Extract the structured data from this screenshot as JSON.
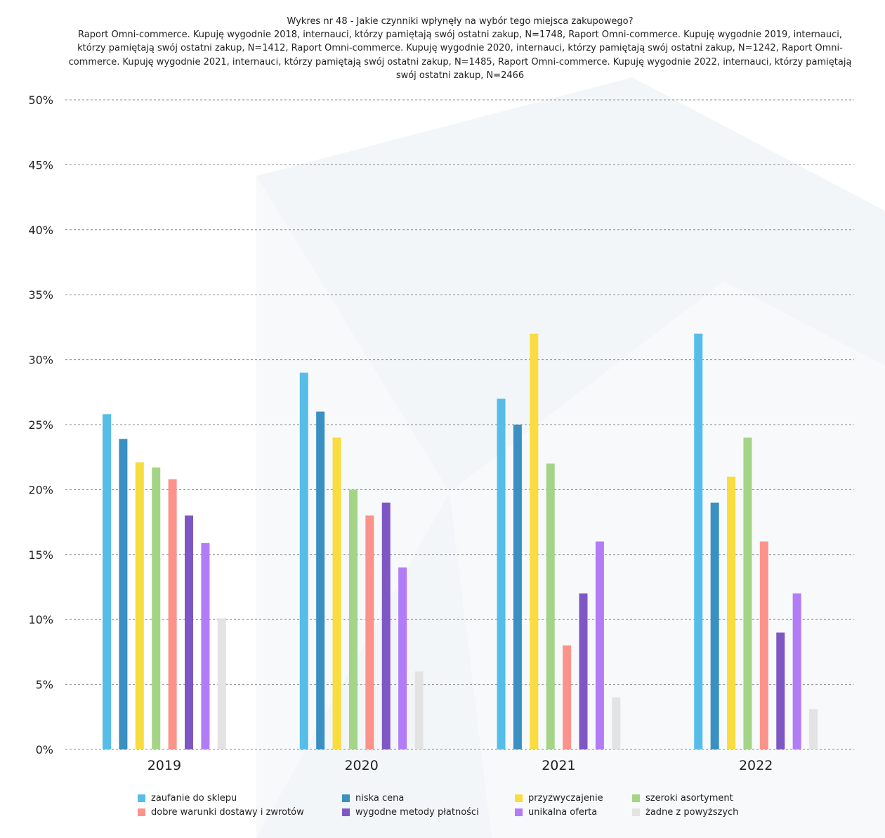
{
  "chart_data": {
    "type": "bar",
    "title": "Wykres nr 48 - Jakie czynniki wpłynęły na wybór tego miejsca zakupowego?",
    "subtitle": "Raport Omni-commerce. Kupuję wygodnie 2018, internauci, którzy pamiętają swój ostatni zakup, N=1748, Raport Omni-commerce. Kupuję wygodnie 2019, internauci, którzy pamiętają swój ostatni zakup, N=1412, Raport Omni-commerce. Kupuję wygodnie 2020, internauci, którzy pamiętają swój ostatni zakup, N=1242, Raport Omni-commerce. Kupuję wygodnie 2021, internauci, którzy pamiętają swój ostatni zakup, N=1485, Raport Omni-commerce. Kupuję wygodnie 2022, internauci, którzy pamiętają swój ostatni zakup, N=2466",
    "categories": [
      "2019",
      "2020",
      "2021",
      "2022"
    ],
    "yticks": [
      "0%",
      "5%",
      "10%",
      "15%",
      "20%",
      "25%",
      "30%",
      "35%",
      "40%",
      "45%",
      "50%"
    ],
    "ylim": [
      0,
      50
    ],
    "xlabel": "",
    "ylabel": "",
    "grid": true,
    "legend_position": "bottom",
    "series": [
      {
        "name": "zaufanie do sklepu",
        "color": "#56bde8",
        "values": [
          25.8,
          29,
          27,
          32
        ]
      },
      {
        "name": "niska cena",
        "color": "#3a8fc3",
        "values": [
          23.9,
          26,
          25,
          19
        ]
      },
      {
        "name": "przyzwyczajenie",
        "color": "#f9dc3e",
        "values": [
          22.1,
          24,
          32,
          21
        ]
      },
      {
        "name": "szeroki asortyment",
        "color": "#a4d586",
        "values": [
          21.7,
          20,
          22,
          24
        ]
      },
      {
        "name": "dobre warunki dostawy i zwrotów",
        "color": "#fc938b",
        "values": [
          20.8,
          18,
          8,
          16
        ]
      },
      {
        "name": "wygodne metody płatności",
        "color": "#7f57c4",
        "values": [
          18,
          19,
          12,
          9
        ]
      },
      {
        "name": "unikalna oferta",
        "color": "#b37cf7",
        "values": [
          15.9,
          14,
          16,
          12
        ]
      },
      {
        "name": "żadne z powyższych",
        "color": "#e3e3e3",
        "values": [
          10.1,
          6,
          4,
          3.1
        ]
      }
    ]
  }
}
